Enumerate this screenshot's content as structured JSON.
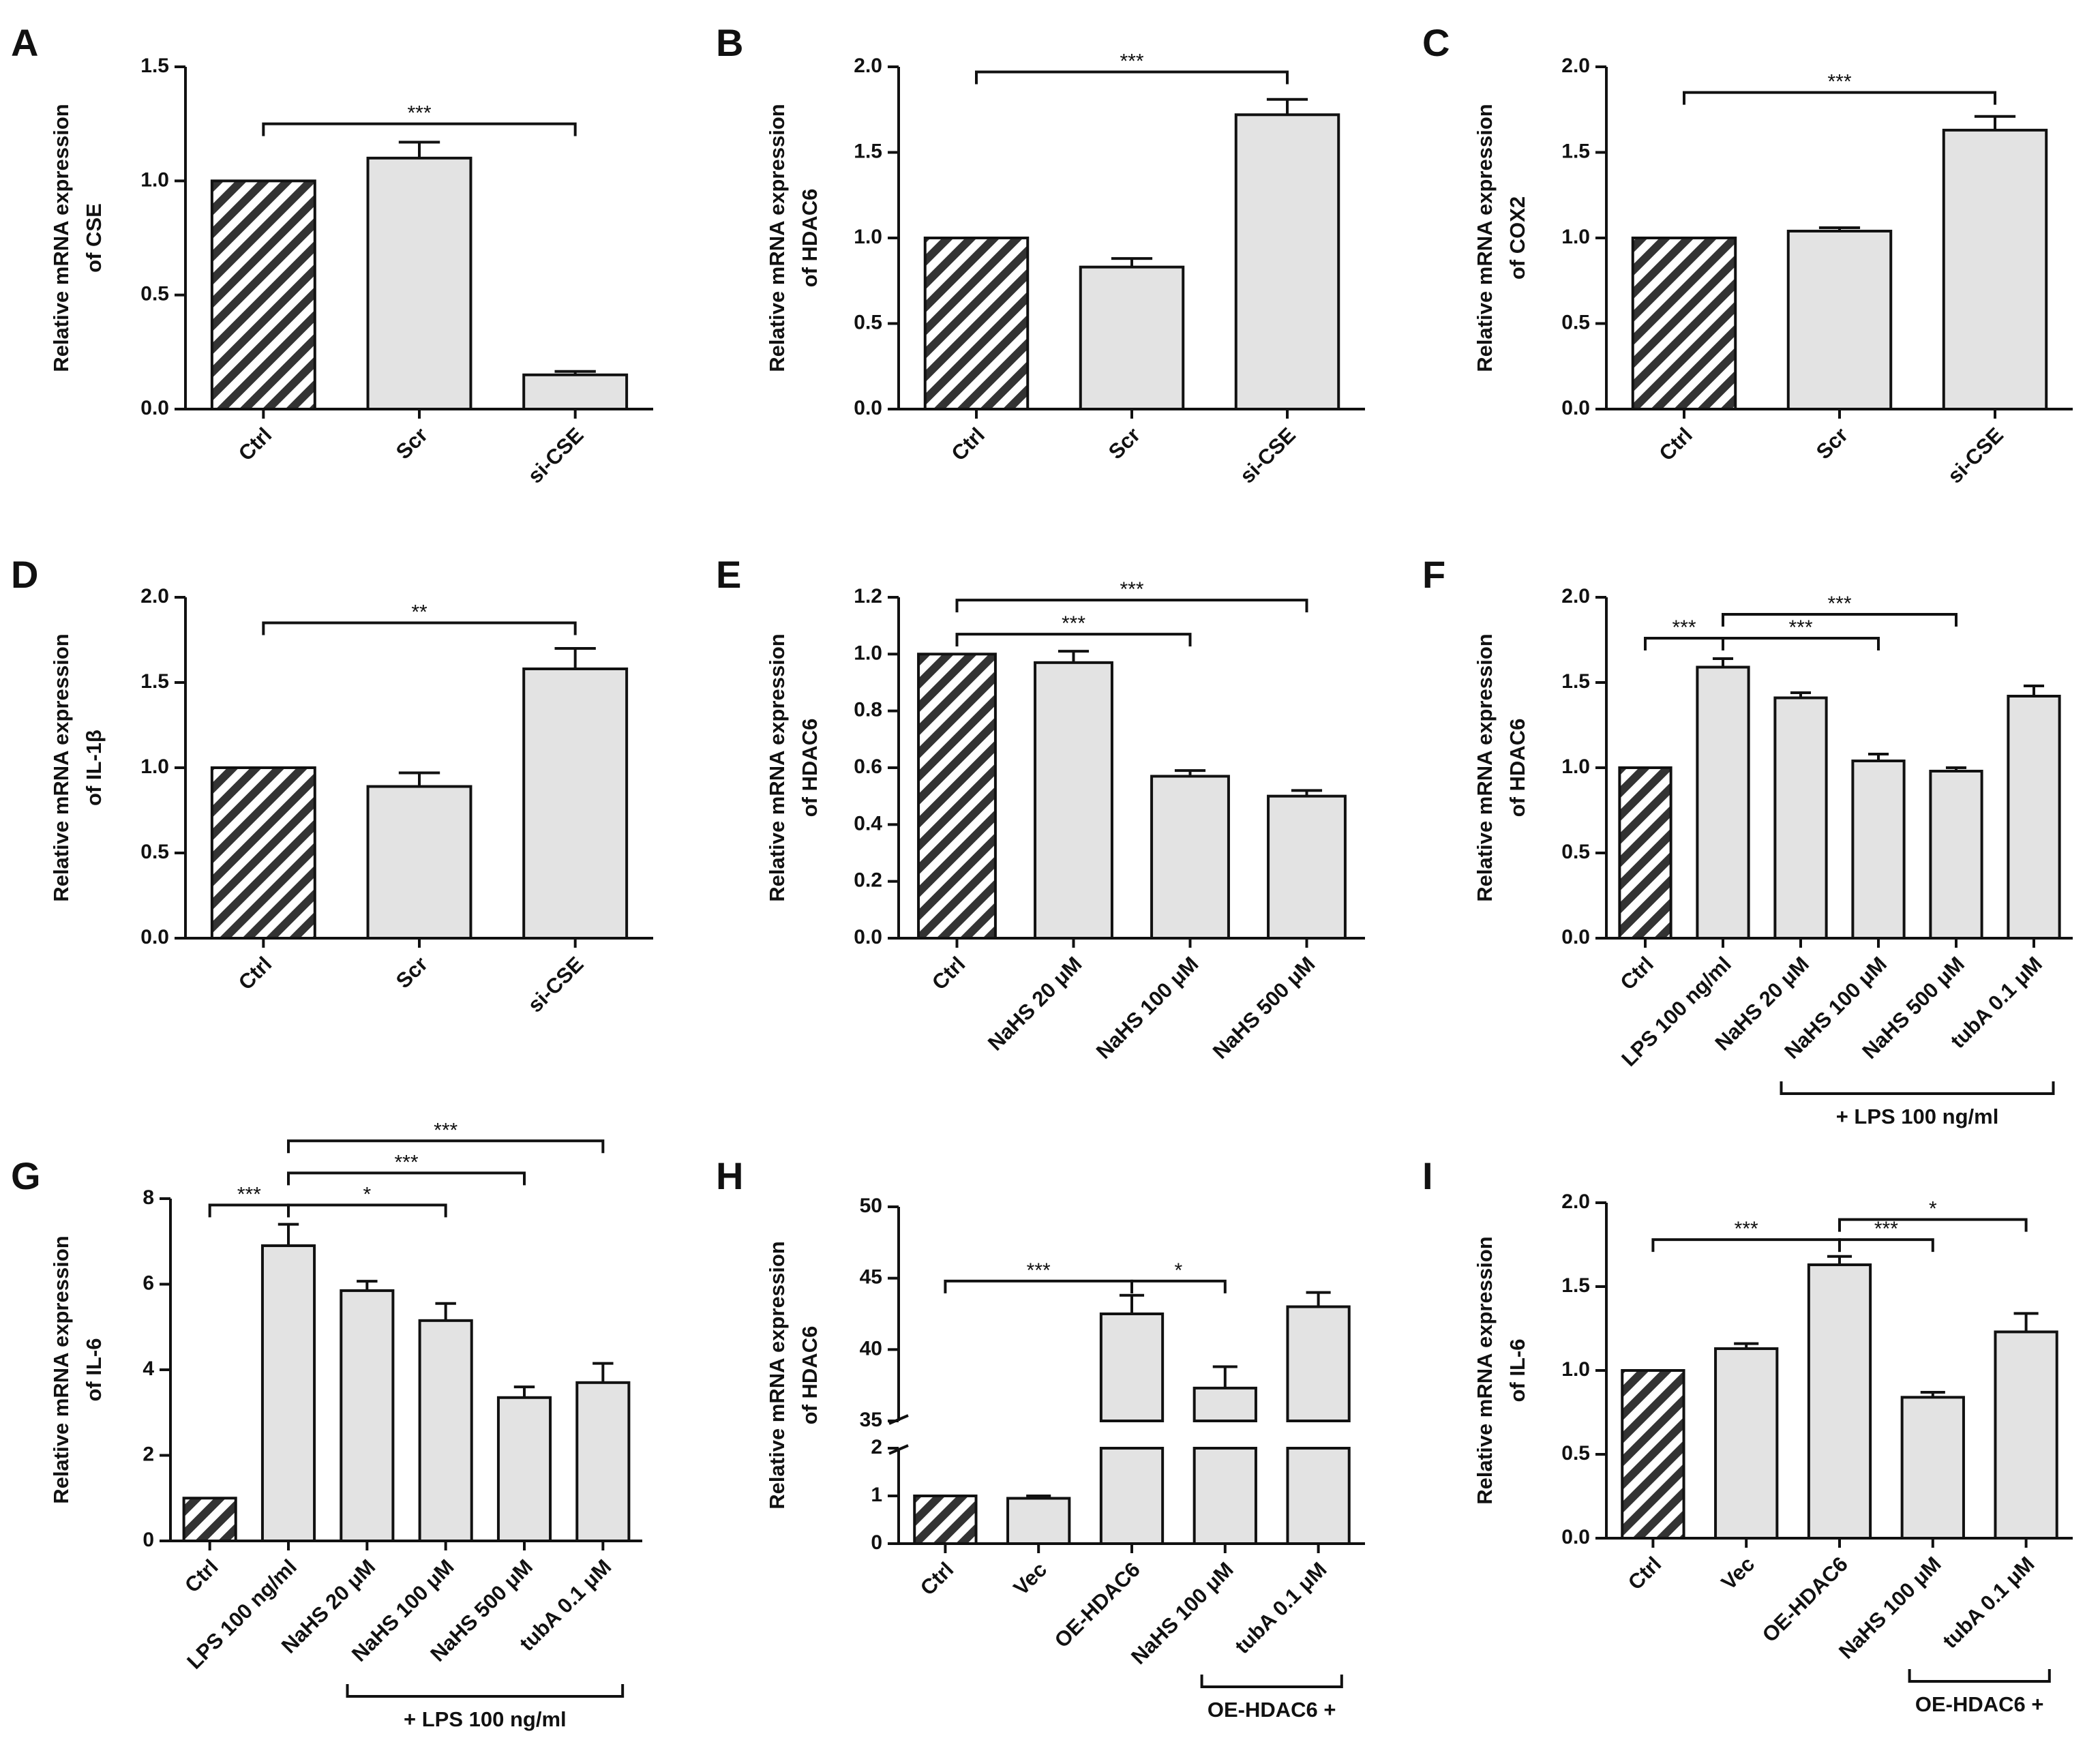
{
  "colors": {
    "bar_fill": "#e3e3e3",
    "ctrl_fill": "#333333",
    "ink": "#111111",
    "background": "#ffffff"
  },
  "chart_data": [
    {
      "panel": "A",
      "type": "bar",
      "ylabel": [
        "Relative mRNA expression",
        "of CSE"
      ],
      "categories": [
        "Ctrl",
        "Scr",
        "si-CSE"
      ],
      "values": [
        1.0,
        1.1,
        0.15
      ],
      "errors": [
        0,
        0.07,
        0.015
      ],
      "ylim": [
        0,
        1.5
      ],
      "ticks": [
        0.0,
        0.5,
        1.0,
        1.5
      ],
      "tick_labels": [
        "0.0",
        "0.5",
        "1.0",
        "1.5"
      ],
      "hatched": [
        0
      ],
      "brackets": [
        {
          "from": 0,
          "to": 2,
          "y": 1.25,
          "label": "***"
        }
      ]
    },
    {
      "panel": "B",
      "type": "bar",
      "ylabel": [
        "Relative mRNA expression",
        "of HDAC6"
      ],
      "categories": [
        "Ctrl",
        "Scr",
        "si-CSE"
      ],
      "values": [
        1.0,
        0.83,
        1.72
      ],
      "errors": [
        0,
        0.05,
        0.09
      ],
      "ylim": [
        0,
        2.0
      ],
      "ticks": [
        0.0,
        0.5,
        1.0,
        1.5,
        2.0
      ],
      "tick_labels": [
        "0.0",
        "0.5",
        "1.0",
        "1.5",
        "2.0"
      ],
      "hatched": [
        0
      ],
      "brackets": [
        {
          "from": 0,
          "to": 2,
          "y": 1.97,
          "label": "***"
        }
      ]
    },
    {
      "panel": "C",
      "type": "bar",
      "ylabel": [
        "Relative mRNA expression",
        "of COX2"
      ],
      "categories": [
        "Ctrl",
        "Scr",
        "si-CSE"
      ],
      "values": [
        1.0,
        1.04,
        1.63
      ],
      "errors": [
        0,
        0.02,
        0.08
      ],
      "ylim": [
        0,
        2.0
      ],
      "ticks": [
        0.0,
        0.5,
        1.0,
        1.5,
        2.0
      ],
      "tick_labels": [
        "0.0",
        "0.5",
        "1.0",
        "1.5",
        "2.0"
      ],
      "hatched": [
        0
      ],
      "brackets": [
        {
          "from": 0,
          "to": 2,
          "y": 1.85,
          "label": "***"
        }
      ]
    },
    {
      "panel": "D",
      "type": "bar",
      "ylabel": [
        "Relative mRNA expression",
        "of IL-1β"
      ],
      "categories": [
        "Ctrl",
        "Scr",
        "si-CSE"
      ],
      "values": [
        1.0,
        0.89,
        1.58
      ],
      "errors": [
        0,
        0.08,
        0.12
      ],
      "ylim": [
        0,
        2.0
      ],
      "ticks": [
        0.0,
        0.5,
        1.0,
        1.5,
        2.0
      ],
      "tick_labels": [
        "0.0",
        "0.5",
        "1.0",
        "1.5",
        "2.0"
      ],
      "hatched": [
        0
      ],
      "brackets": [
        {
          "from": 0,
          "to": 2,
          "y": 1.85,
          "label": "**"
        }
      ]
    },
    {
      "panel": "E",
      "type": "bar",
      "ylabel": [
        "Relative mRNA expression",
        "of HDAC6"
      ],
      "categories": [
        "Ctrl",
        "NaHS 20 μM",
        "NaHS 100 μM",
        "NaHS 500 μM"
      ],
      "values": [
        1.0,
        0.97,
        0.57,
        0.5
      ],
      "errors": [
        0,
        0.04,
        0.02,
        0.02
      ],
      "ylim": [
        0,
        1.2
      ],
      "ticks": [
        0.0,
        0.2,
        0.4,
        0.6,
        0.8,
        1.0,
        1.2
      ],
      "tick_labels": [
        "0.0",
        "0.2",
        "0.4",
        "0.6",
        "0.8",
        "1.0",
        "1.2"
      ],
      "hatched": [
        0
      ],
      "brackets": [
        {
          "from": 0,
          "to": 3,
          "y": 1.19,
          "label": "***"
        },
        {
          "from": 0,
          "to": 2,
          "y": 1.07,
          "label": "***"
        }
      ]
    },
    {
      "panel": "F",
      "type": "bar",
      "ylabel": [
        "Relative mRNA expression",
        "of HDAC6"
      ],
      "categories": [
        "Ctrl",
        "LPS 100 ng/ml",
        "NaHS 20 μM",
        "NaHS 100 μM",
        "NaHS 500 μM",
        "tubA 0.1 μM"
      ],
      "values": [
        1.0,
        1.59,
        1.41,
        1.04,
        0.98,
        1.42
      ],
      "errors": [
        0,
        0.05,
        0.03,
        0.04,
        0.02,
        0.06
      ],
      "ylim": [
        0,
        2.0
      ],
      "ticks": [
        0.0,
        0.5,
        1.0,
        1.5,
        2.0
      ],
      "tick_labels": [
        "0.0",
        "0.5",
        "1.0",
        "1.5",
        "2.0"
      ],
      "hatched": [
        0
      ],
      "brackets": [
        {
          "from": 0,
          "to": 1,
          "y": 1.76,
          "label": "***"
        },
        {
          "from": 1,
          "to": 4,
          "y": 1.9,
          "label": "***"
        },
        {
          "from": 1,
          "to": 3,
          "y": 1.76,
          "label": "***"
        }
      ],
      "group": {
        "from": 2,
        "to": 5,
        "label": "+ LPS 100 ng/ml"
      }
    },
    {
      "panel": "G",
      "type": "bar",
      "ylabel": [
        "Relative mRNA expression",
        "of IL-6"
      ],
      "categories": [
        "Ctrl",
        "LPS 100 ng/ml",
        "NaHS 20 μM",
        "NaHS 100 μM",
        "NaHS 500 μM",
        "tubA 0.1 μM"
      ],
      "values": [
        1.0,
        6.9,
        5.85,
        5.15,
        3.35,
        3.7
      ],
      "errors": [
        0,
        0.5,
        0.22,
        0.4,
        0.25,
        0.45
      ],
      "ylim": [
        0,
        8
      ],
      "ticks": [
        0,
        2,
        4,
        6,
        8
      ],
      "tick_labels": [
        "0",
        "2",
        "4",
        "6",
        "8"
      ],
      "hatched": [
        0
      ],
      "brackets": [
        {
          "from": 0,
          "to": 1,
          "y": 7.85,
          "label": "***"
        },
        {
          "from": 1,
          "to": 5,
          "y": 9.35,
          "label": "***"
        },
        {
          "from": 1,
          "to": 4,
          "y": 8.6,
          "label": "***"
        },
        {
          "from": 1,
          "to": 3,
          "y": 7.85,
          "label": "*"
        }
      ],
      "group": {
        "from": 2,
        "to": 5,
        "label": "+ LPS 100 ng/ml"
      }
    },
    {
      "panel": "H",
      "type": "bar",
      "ylabel": [
        "Relative mRNA expression",
        "of HDAC6"
      ],
      "categories": [
        "Ctrl",
        "Vec",
        "OE-HDAC6",
        "NaHS 100 μM",
        "tubA 0.1 μM"
      ],
      "values": [
        1.0,
        0.95,
        42.5,
        37.3,
        43.0
      ],
      "errors": [
        0,
        0.05,
        1.3,
        1.5,
        1.0
      ],
      "axis_break": {
        "lower": [
          0,
          2
        ],
        "upper": [
          35,
          50
        ]
      },
      "ticks_lower": [
        0,
        1,
        2
      ],
      "tick_labels_lower": [
        "0",
        "1",
        "2"
      ],
      "ticks_upper": [
        35,
        40,
        45,
        50
      ],
      "tick_labels_upper": [
        "35",
        "40",
        "45",
        "50"
      ],
      "hatched": [
        0
      ],
      "brackets": [
        {
          "from": 0,
          "to": 2,
          "y": 44.8,
          "label": "***"
        },
        {
          "from": 2,
          "to": 3,
          "y": 44.8,
          "label": "*"
        }
      ],
      "group": {
        "from": 3,
        "to": 4,
        "label": "OE-HDAC6 +"
      }
    },
    {
      "panel": "I",
      "type": "bar",
      "ylabel": [
        "Relative mRNA expression",
        "of IL-6"
      ],
      "categories": [
        "Ctrl",
        "Vec",
        "OE-HDAC6",
        "NaHS 100 μM",
        "tubA 0.1 μM"
      ],
      "values": [
        1.0,
        1.13,
        1.63,
        0.84,
        1.23
      ],
      "errors": [
        0,
        0.03,
        0.05,
        0.03,
        0.11
      ],
      "ylim": [
        0,
        2.0
      ],
      "ticks": [
        0.0,
        0.5,
        1.0,
        1.5,
        2.0
      ],
      "tick_labels": [
        "0.0",
        "0.5",
        "1.0",
        "1.5",
        "2.0"
      ],
      "hatched": [
        0
      ],
      "brackets": [
        {
          "from": 0,
          "to": 2,
          "y": 1.78,
          "label": "***"
        },
        {
          "from": 2,
          "to": 4,
          "y": 1.9,
          "label": "*"
        },
        {
          "from": 2,
          "to": 3,
          "y": 1.78,
          "label": "***"
        }
      ],
      "group": {
        "from": 3,
        "to": 4,
        "label": "OE-HDAC6 +"
      }
    }
  ]
}
